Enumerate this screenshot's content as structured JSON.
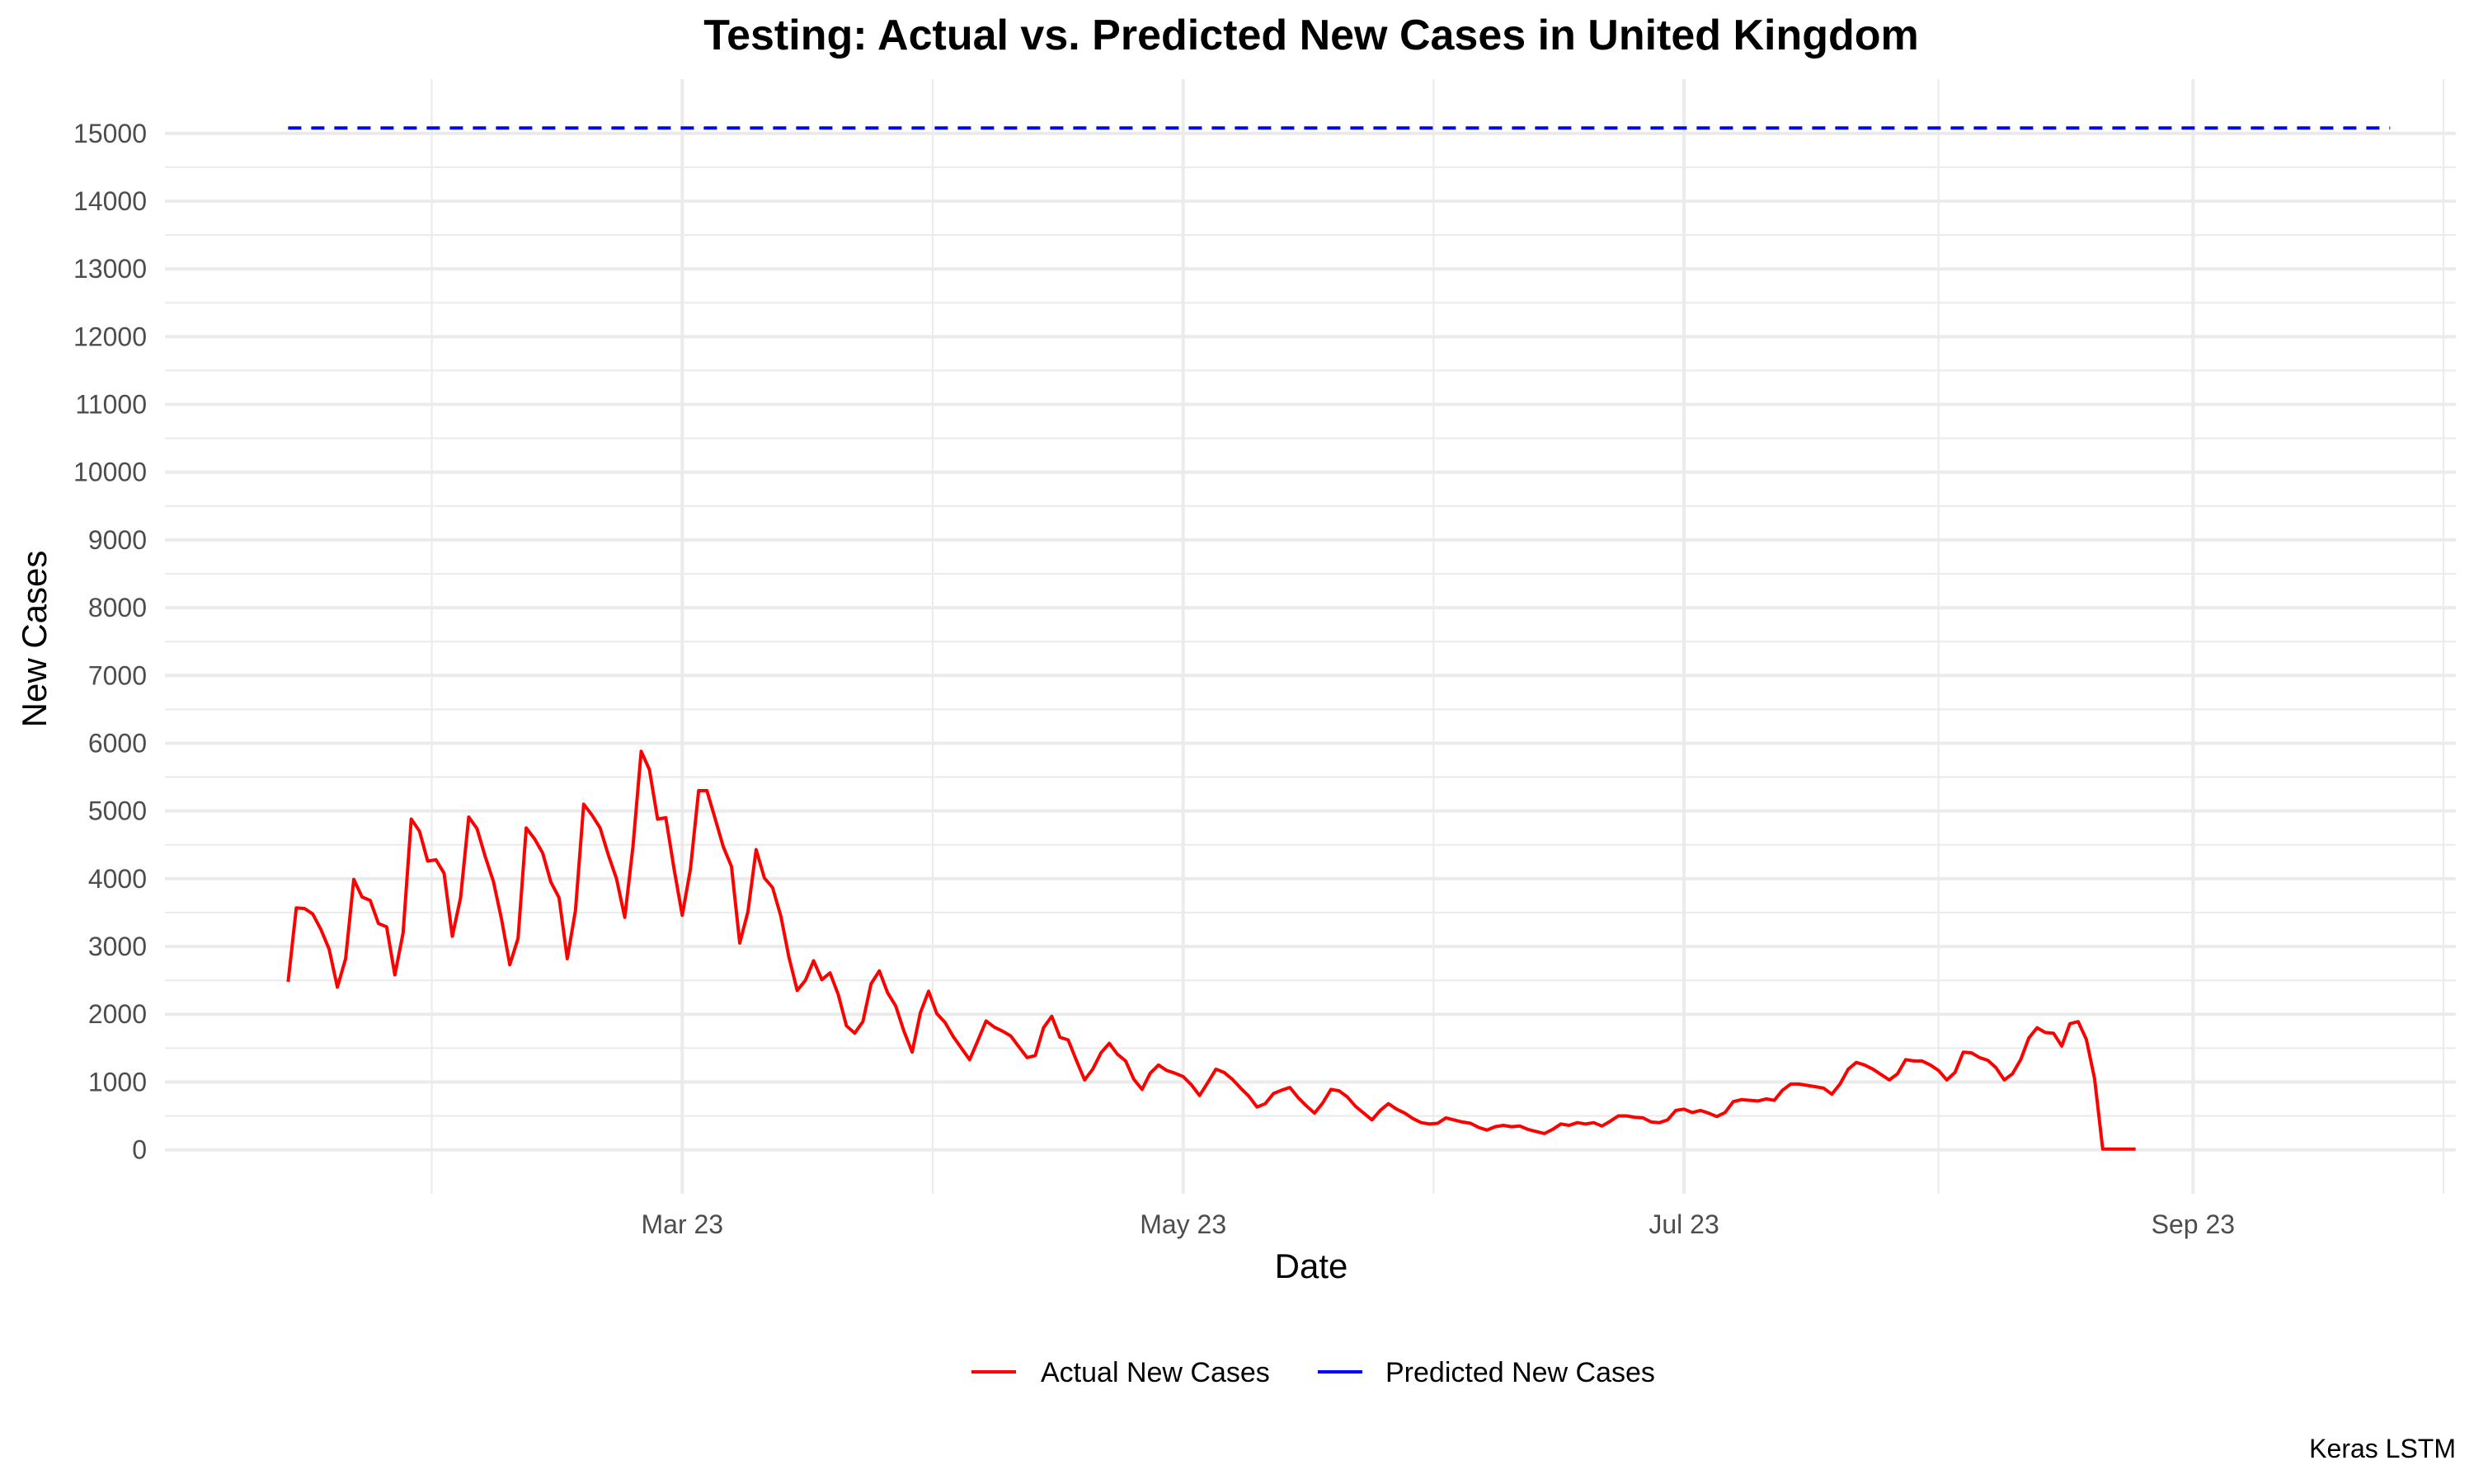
{
  "chart_data": {
    "type": "line",
    "title": "Testing: Actual vs. Predicted New Cases in United Kingdom",
    "xlabel": "Date",
    "ylabel": "New Cases",
    "caption": "Keras LSTM",
    "x_ticks": [
      "Mar 23",
      "May 23",
      "Jul 23",
      "Sep 23"
    ],
    "x_tick_dates": [
      "2023-03-01",
      "2023-05-01",
      "2023-07-01",
      "2023-09-01"
    ],
    "xlim": [
      "2022-12-28",
      "2023-10-03"
    ],
    "y_ticks": [
      0,
      1000,
      2000,
      3000,
      4000,
      5000,
      6000,
      7000,
      8000,
      9000,
      10000,
      11000,
      12000,
      13000,
      14000,
      15000
    ],
    "ylim": [
      -650,
      15800
    ],
    "grid": true,
    "legend_position": "bottom",
    "series": [
      {
        "name": "Actual New Cases",
        "color": "#ff0000",
        "style": "solid",
        "start_date": "2023-01-12",
        "values": [
          2480,
          3570,
          3560,
          3480,
          3250,
          2960,
          2400,
          2820,
          3990,
          3730,
          3680,
          3340,
          3290,
          2580,
          3200,
          4880,
          4700,
          4260,
          4280,
          4080,
          3150,
          3720,
          4910,
          4740,
          4330,
          3960,
          3400,
          2730,
          3120,
          4750,
          4590,
          4380,
          3950,
          3720,
          2820,
          3530,
          5100,
          4940,
          4750,
          4350,
          4000,
          3430,
          4470,
          5880,
          5610,
          4880,
          4900,
          4150,
          3460,
          4140,
          5300,
          5300,
          4890,
          4470,
          4180,
          3050,
          3510,
          4430,
          4010,
          3870,
          3450,
          2840,
          2350,
          2500,
          2790,
          2510,
          2610,
          2290,
          1830,
          1720,
          1890,
          2450,
          2640,
          2320,
          2120,
          1750,
          1440,
          2020,
          2340,
          2010,
          1880,
          1670,
          1500,
          1330,
          1610,
          1900,
          1810,
          1750,
          1680,
          1520,
          1360,
          1390,
          1800,
          1970,
          1660,
          1620,
          1320,
          1030,
          1190,
          1430,
          1570,
          1410,
          1310,
          1040,
          890,
          1130,
          1250,
          1170,
          1130,
          1080,
          960,
          800,
          990,
          1190,
          1140,
          1040,
          910,
          790,
          630,
          680,
          830,
          880,
          920,
          770,
          650,
          540,
          690,
          890,
          870,
          780,
          640,
          540,
          440,
          580,
          680,
          600,
          540,
          460,
          400,
          380,
          390,
          470,
          440,
          410,
          390,
          330,
          290,
          340,
          360,
          340,
          350,
          300,
          270,
          240,
          300,
          380,
          360,
          400,
          380,
          400,
          350,
          420,
          500,
          500,
          480,
          470,
          410,
          400,
          440,
          580,
          600,
          550,
          580,
          540,
          490,
          550,
          710,
          740,
          730,
          720,
          750,
          730,
          880,
          970,
          970,
          950,
          930,
          910,
          820,
          970,
          1190,
          1290,
          1250,
          1190,
          1110,
          1030,
          1120,
          1330,
          1310,
          1310,
          1250,
          1170,
          1030,
          1140,
          1440,
          1430,
          1360,
          1320,
          1210,
          1030,
          1120,
          1330,
          1650,
          1800,
          1730,
          1720,
          1530,
          1860,
          1890,
          1630,
          1050,
          10,
          10,
          10,
          10,
          10
        ]
      },
      {
        "name": "Predicted New Cases",
        "color": "#0000ff",
        "style": "dashed",
        "x": [
          "2023-01-12",
          "2023-09-25"
        ],
        "values": [
          15080,
          15080
        ]
      }
    ]
  }
}
